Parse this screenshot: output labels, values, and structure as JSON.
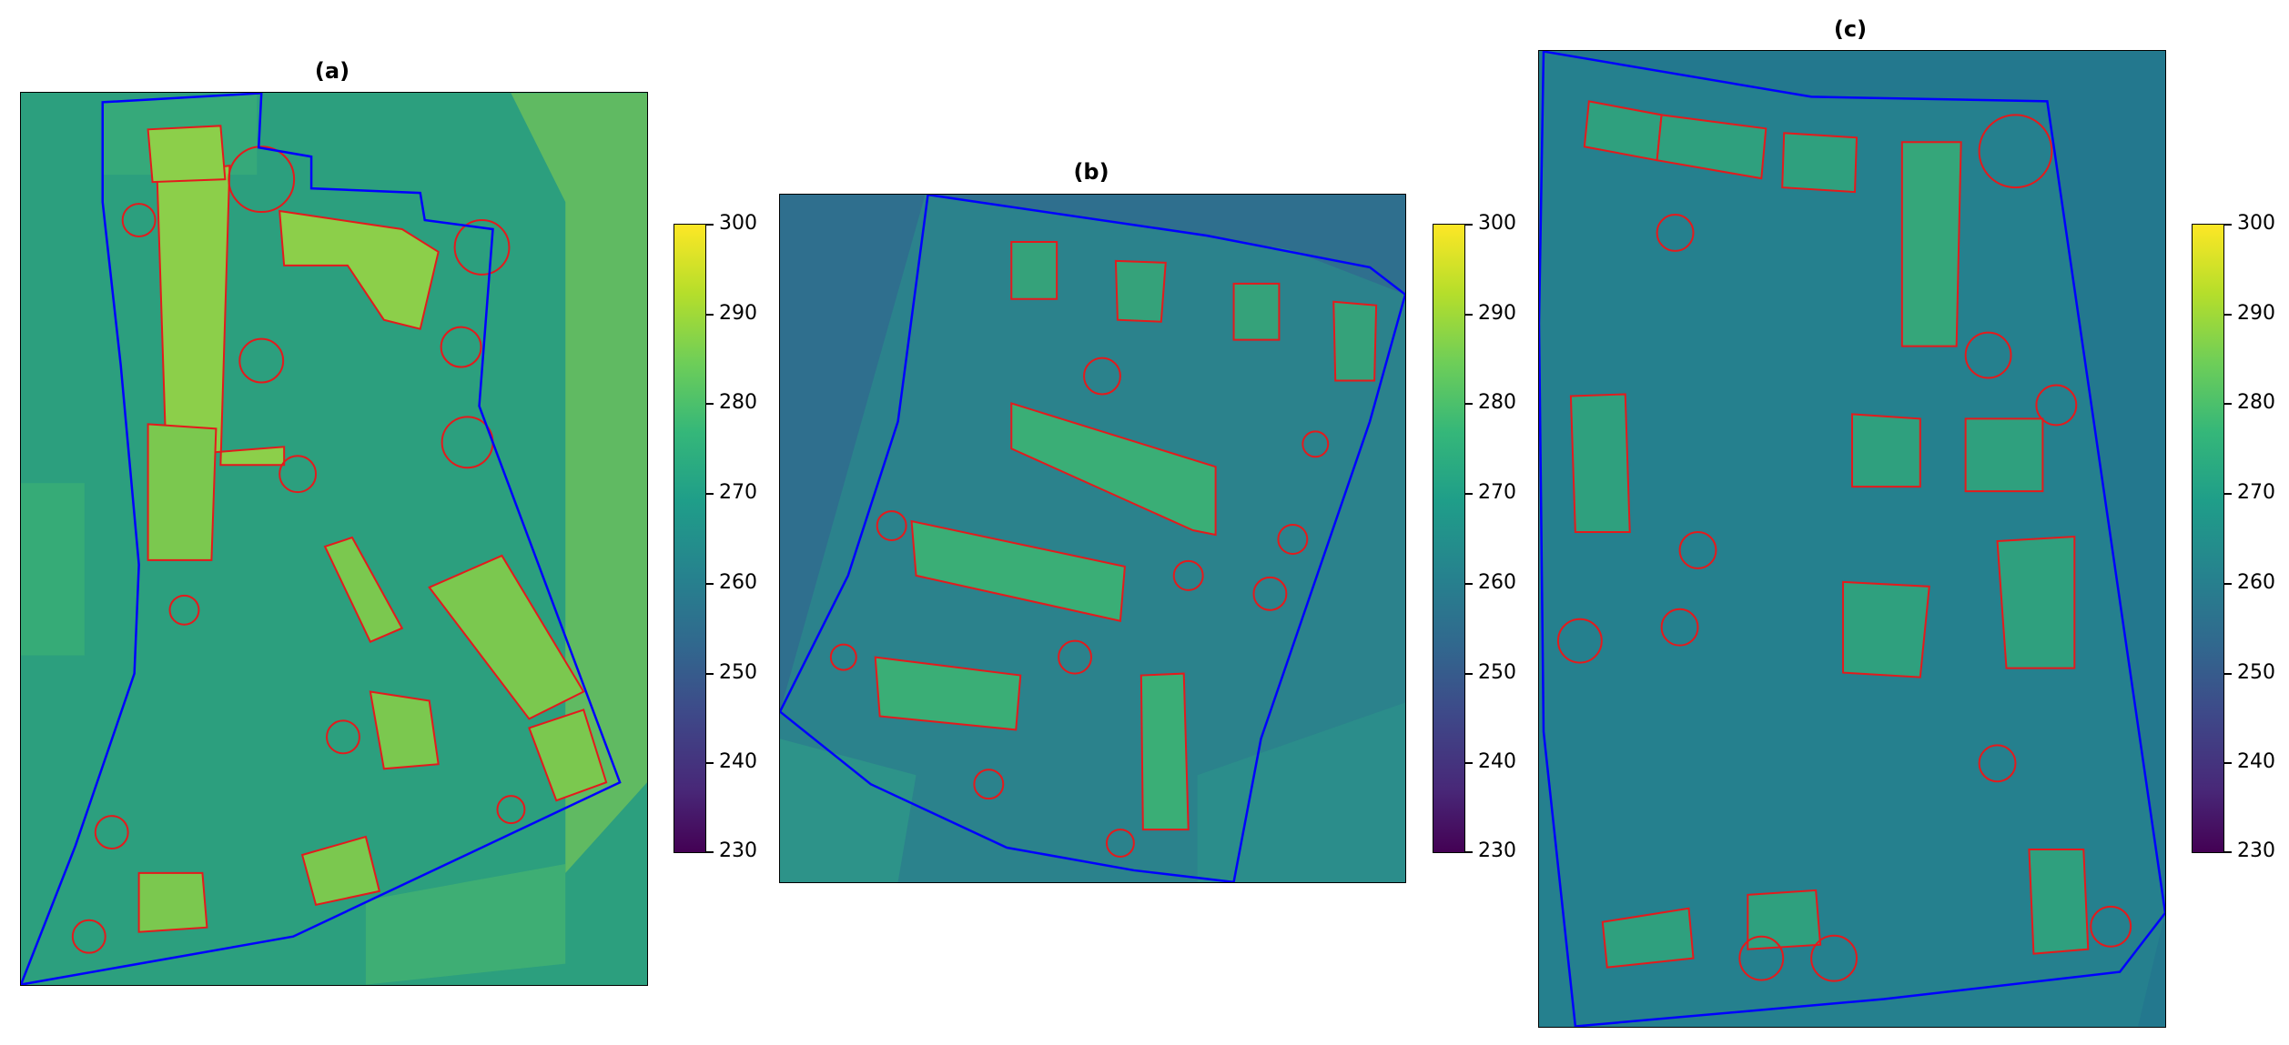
{
  "chart_data": [
    {
      "type": "heatmap",
      "id": "a",
      "title": "(a)",
      "colormap": "viridis",
      "colorbar": {
        "min": 230,
        "max": 300,
        "ticks": [
          300,
          290,
          280,
          270,
          260,
          250,
          240,
          230
        ]
      },
      "boundary_color": "#0000ff",
      "outline_color": "#e41a1c"
    },
    {
      "type": "heatmap",
      "id": "b",
      "title": "(b)",
      "colormap": "viridis",
      "colorbar": {
        "min": 230,
        "max": 300,
        "ticks": [
          300,
          290,
          280,
          270,
          260,
          250,
          240,
          230
        ]
      },
      "boundary_color": "#0000ff",
      "outline_color": "#e41a1c"
    },
    {
      "type": "heatmap",
      "id": "c",
      "title": "(c)",
      "colormap": "viridis",
      "colorbar": {
        "min": 230,
        "max": 300,
        "ticks": [
          300,
          290,
          280,
          270,
          260,
          250,
          240,
          230
        ]
      },
      "boundary_color": "#0000ff",
      "outline_color": "#e41a1c"
    }
  ]
}
